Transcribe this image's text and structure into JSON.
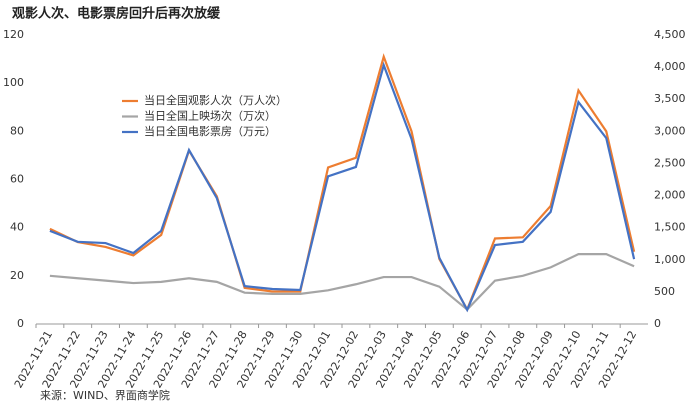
{
  "chart_data": {
    "type": "line",
    "title": "观影人次、电影票房回升后再次放缓",
    "source": "来源：WIND、界面商学院",
    "categories": [
      "2022-11-21",
      "2022-11-22",
      "2022-11-23",
      "2022-11-24",
      "2022-11-25",
      "2022-11-26",
      "2022-11-27",
      "2022-11-28",
      "2022-11-29",
      "2022-11-30",
      "2022-12-01",
      "2022-12-02",
      "2022-12-03",
      "2022-12-04",
      "2022-12-05",
      "2022-12-06",
      "2022-12-07",
      "2022-12-08",
      "2022-12-09",
      "2022-12-10",
      "2022-12-11",
      "2022-12-12"
    ],
    "series": [
      {
        "name": "当日全国观影人次（万人次）",
        "color": "#ed7d31",
        "values": [
          39.5,
          34,
          32,
          28.5,
          37,
          72,
          53,
          15,
          13.5,
          13.5,
          65,
          69,
          111,
          80,
          27,
          6,
          35.5,
          36,
          49,
          97,
          80,
          30
        ]
      },
      {
        "name": "当日全国上映场次（万次）",
        "color": "#a5a5a5",
        "values": [
          20,
          19,
          18,
          17,
          17.5,
          19,
          17.5,
          13,
          12.5,
          12.5,
          14,
          16.5,
          19.5,
          19.5,
          15.5,
          6,
          18,
          20,
          23.5,
          29,
          29,
          24
        ]
      },
      {
        "name": "当日全国电影票房（万元）",
        "color": "#4472c4",
        "axis": "y2",
        "values": [
          1450,
          1280,
          1260,
          1105,
          1450,
          2710,
          1960,
          590,
          545,
          530,
          2300,
          2445,
          4030,
          2880,
          1030,
          220,
          1230,
          1280,
          1745,
          3455,
          2895,
          1010
        ]
      }
    ],
    "ylim": [
      0,
      120
    ],
    "yticks": [
      0,
      20,
      40,
      60,
      80,
      100,
      120
    ],
    "y2lim": [
      0,
      4500
    ],
    "y2ticks": [
      0,
      500,
      {
        "value": 1000,
        "label": "1,000"
      },
      {
        "value": 1500,
        "label": "1,500"
      },
      {
        "value": 2000,
        "label": "2,000"
      },
      {
        "value": 2500,
        "label": "2,500"
      },
      {
        "value": 3000,
        "label": "3,000"
      },
      {
        "value": 3500,
        "label": "3,500"
      },
      {
        "value": 4000,
        "label": "4,000"
      },
      {
        "value": 4500,
        "label": "4,500"
      }
    ],
    "grid": false
  }
}
